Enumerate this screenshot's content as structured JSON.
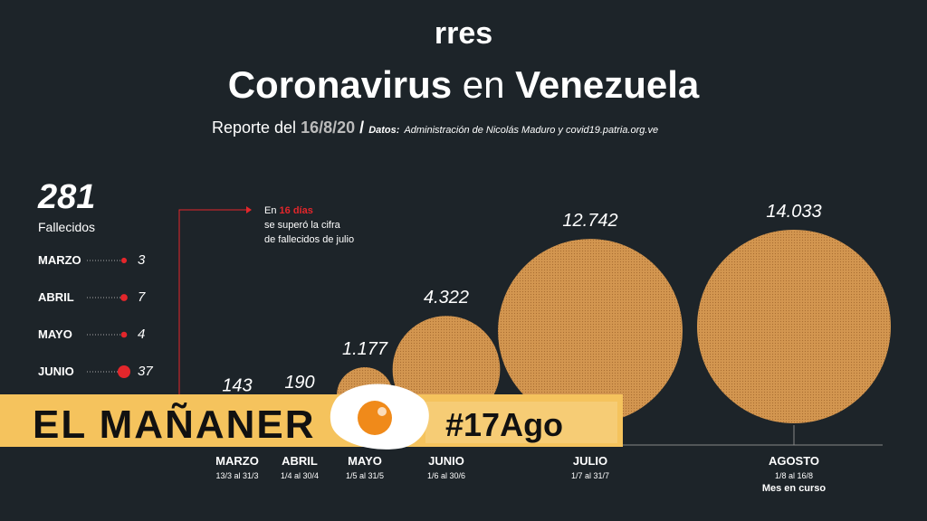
{
  "logo": "rres",
  "title": {
    "bold": "Coronavirus",
    "light": "en",
    "bold2": "Venezuela"
  },
  "subtitle": {
    "prefix": "Reporte del",
    "date": "16/8/20",
    "slash": "/",
    "source_label": "Datos:",
    "source": "Administración de Nicolás Maduro y covid19.patria.org.ve"
  },
  "callout": {
    "line1_prefix": "En",
    "line1_highlight": "16 días",
    "line2": "se superó la cifra",
    "line3": "de  fallecidos de julio"
  },
  "chart_data": [
    {
      "type": "bubble",
      "categories": [
        "MARZO",
        "ABRIL",
        "MAYO",
        "JUNIO",
        "JULIO",
        "AGOSTO"
      ],
      "sublabels": [
        "13/3 al 31/3",
        "1/4 al 30/4",
        "1/5 al 31/5",
        "1/6 al 30/6",
        "1/7 al 31/7",
        "1/8 al 16/8"
      ],
      "values": [
        143,
        190,
        1177,
        4322,
        12742,
        14033
      ],
      "value_labels": [
        "143",
        "190",
        "1.177",
        "4.322",
        "12.742",
        "14.033"
      ],
      "note": "Mes en curso",
      "color": "#c98a45"
    },
    {
      "type": "dot",
      "total": 281,
      "total_label": "Fallecidos",
      "categories": [
        "MARZO",
        "ABRIL",
        "MAYO",
        "JUNIO"
      ],
      "values": [
        3,
        7,
        4,
        37
      ],
      "color": "#e3262b"
    }
  ],
  "overlay": {
    "show": "EL MAÑANER",
    "hashtag": "#17Ago"
  }
}
